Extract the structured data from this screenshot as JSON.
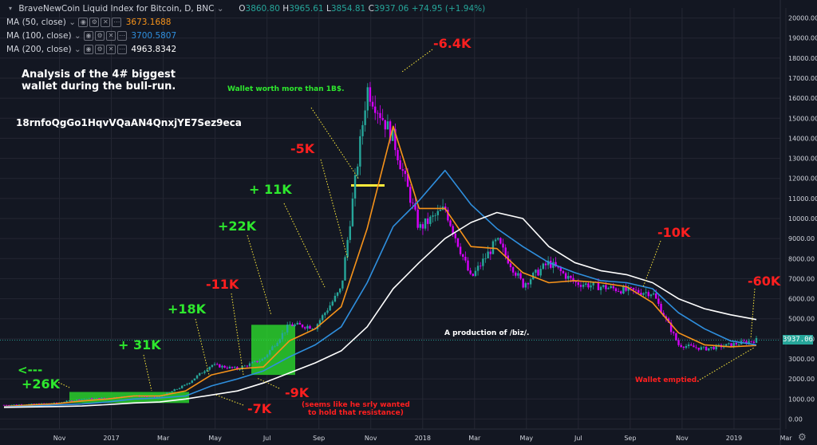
{
  "header": {
    "symbol_title": "BraveNewCoin Liquid Index for Bitcoin, D, BNC",
    "ohlc": {
      "o_label": "O",
      "o": "3860.80",
      "h_label": "H",
      "h": "3965.61",
      "l_label": "L",
      "l": "3854.81",
      "c_label": "C",
      "c": "3937.06",
      "change": "+74.95 (+1.94%)"
    },
    "indicators": [
      {
        "label": "MA (50, close)",
        "value": "3673.1688",
        "color": "#f7931a"
      },
      {
        "label": "MA (100, close)",
        "value": "3700.5807",
        "color": "#2f8fde"
      },
      {
        "label": "MA (200, close)",
        "value": "4963.8342",
        "color": "#ffffff"
      }
    ]
  },
  "annotations": {
    "title_line1": "Analysis of the 4# biggest",
    "title_line2": "wallet during the bull-run.",
    "wallet_address": "18rnfoQgGo1HqvVQaAN4QnxjYE7Sez9eca",
    "wallet_worth": "Wallet worth more than 1B$.",
    "production": "A production of /biz/.",
    "wallet_emptied": "Wallet emptied.",
    "resistance_note": "(seems like he srly wanted\nto hold that resistance)",
    "labels": [
      {
        "text": "<---",
        "color": "#2ee82e"
      },
      {
        "text": "+26K",
        "color": "#2ee82e"
      },
      {
        "text": "+ 31K",
        "color": "#2ee82e"
      },
      {
        "text": "+18K",
        "color": "#2ee82e"
      },
      {
        "text": "-11K",
        "color": "#ff1f1f"
      },
      {
        "text": "+22K",
        "color": "#2ee82e"
      },
      {
        "text": "+ 11K",
        "color": "#2ee82e"
      },
      {
        "text": "-5K",
        "color": "#ff1f1f"
      },
      {
        "text": "-6.4K",
        "color": "#ff1f1f"
      },
      {
        "text": "-10K",
        "color": "#ff1f1f"
      },
      {
        "text": "-60K",
        "color": "#ff1f1f"
      },
      {
        "text": "-9K",
        "color": "#ff1f1f"
      },
      {
        "text": "-7K",
        "color": "#ff1f1f"
      }
    ]
  },
  "price_tag": {
    "value": "3937.06",
    "color": "#26a69a"
  },
  "colors": {
    "background": "#131722",
    "grid": "#242733",
    "axis_text": "#d1d4dc",
    "candle_up": "#26a69a",
    "candle_down": "#d500f9",
    "ma50": "#f7931a",
    "ma100": "#2f8fde",
    "ma200": "#ffffff",
    "highlight_box": "#2ee82e",
    "marker_line": "#ffeb3b",
    "pointer": "#ffeb3b"
  },
  "chart_data": {
    "type": "line",
    "title": "BraveNewCoin Liquid Index for Bitcoin, D, BNC",
    "xlabel": "",
    "ylabel": "",
    "ylim": [
      -500,
      20500
    ],
    "y_ticks": [
      "0.00",
      "1000.00",
      "2000.00",
      "3000.00",
      "4000.00",
      "5000.00",
      "6000.00",
      "7000.00",
      "8000.00",
      "9000.00",
      "10000.00",
      "11000.00",
      "12000.00",
      "13000.00",
      "14000.00",
      "15000.00",
      "16000.00",
      "17000.00",
      "18000.00",
      "19000.00",
      "20000.00"
    ],
    "x_ticks": [
      "Nov",
      "2017",
      "Mar",
      "May",
      "Jul",
      "Sep",
      "Nov",
      "2018",
      "Mar",
      "May",
      "Jul",
      "Sep",
      "Nov",
      "2019",
      "Mar"
    ],
    "x": [
      "2016-10",
      "2016-11",
      "2016-12",
      "2017-01",
      "2017-02",
      "2017-03",
      "2017-04",
      "2017-05",
      "2017-06",
      "2017-07",
      "2017-08",
      "2017-09",
      "2017-10",
      "2017-11",
      "2017-12",
      "2018-01",
      "2018-02",
      "2018-03",
      "2018-04",
      "2018-05",
      "2018-06",
      "2018-07",
      "2018-08",
      "2018-09",
      "2018-10",
      "2018-11",
      "2018-12",
      "2019-01",
      "2019-02",
      "2019-03"
    ],
    "series": [
      {
        "name": "MA (50, close)",
        "values": [
          620,
          700,
          760,
          900,
          1000,
          1150,
          1150,
          1400,
          2200,
          2500,
          2600,
          3900,
          4500,
          5600,
          9500,
          14600,
          10500,
          10500,
          8600,
          8500,
          7300,
          6800,
          6900,
          6800,
          6600,
          5800,
          4300,
          3700,
          3600,
          3670
        ]
      },
      {
        "name": "MA (100, close)",
        "values": [
          600,
          640,
          700,
          750,
          850,
          1000,
          1050,
          1150,
          1650,
          2000,
          2400,
          3100,
          3700,
          4600,
          6800,
          9600,
          10900,
          12400,
          10700,
          9500,
          8600,
          7800,
          7300,
          6900,
          6800,
          6500,
          5300,
          4500,
          3900,
          3700
        ]
      },
      {
        "name": "MA (200, close)",
        "values": [
          580,
          600,
          620,
          650,
          720,
          800,
          850,
          1000,
          1200,
          1400,
          1800,
          2300,
          2800,
          3400,
          4600,
          6500,
          7800,
          9000,
          9800,
          10300,
          10000,
          8600,
          7800,
          7400,
          7200,
          6800,
          6000,
          5500,
          5200,
          4960
        ]
      },
      {
        "name": "Price",
        "values": [
          700,
          740,
          800,
          1000,
          1050,
          1150,
          1100,
          1700,
          2700,
          2500,
          3000,
          4700,
          4600,
          6500,
          16500,
          14000,
          9500,
          10500,
          7000,
          8900,
          6700,
          7800,
          6800,
          6600,
          6400,
          6300,
          3700,
          3500,
          3700,
          3937
        ]
      }
    ]
  }
}
